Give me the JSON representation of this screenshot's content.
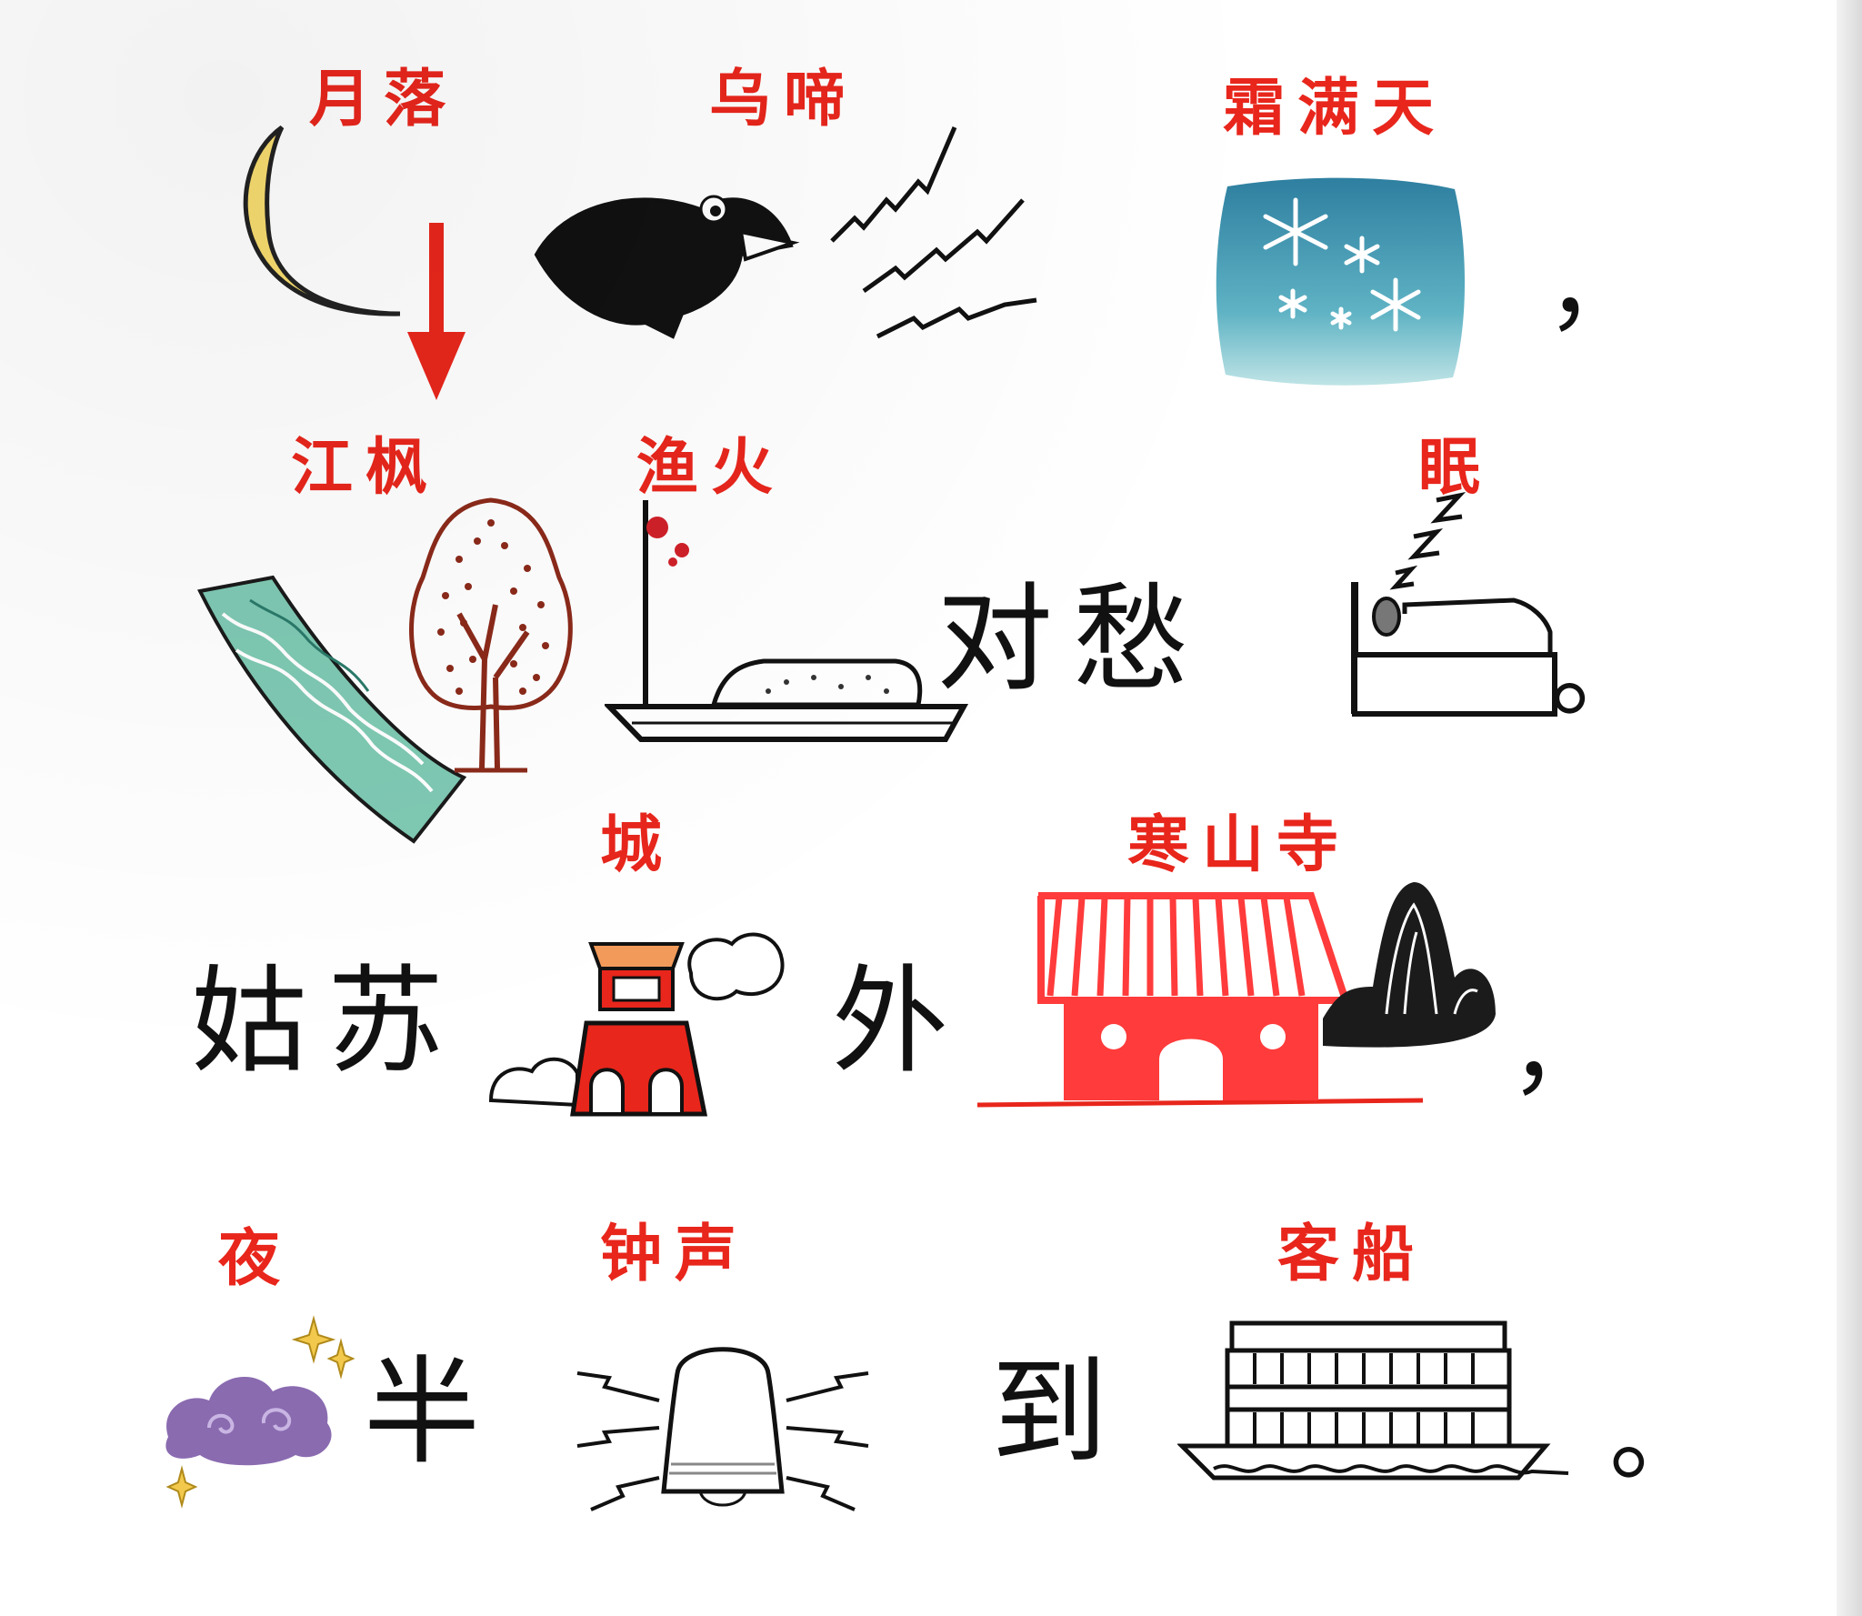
{
  "poem": {
    "line1": {
      "label_moon": "月落",
      "label_crow": "乌啼",
      "label_frost": "霜满天",
      "end_mark": "，"
    },
    "line2": {
      "label_river_maple": "江枫",
      "label_fishing_fire": "渔火",
      "text": "对愁",
      "label_sleep": "眠",
      "end_mark": "。"
    },
    "line3": {
      "text_gusu": "姑苏",
      "label_city": "城",
      "text_wai": "外",
      "label_temple": "寒山寺",
      "end_mark": "，"
    },
    "line4": {
      "label_night": "夜",
      "text_ban": "半",
      "label_bell": "钟声",
      "text_dao": "到",
      "label_boat": "客船",
      "end_mark": "。"
    }
  },
  "icons": [
    "moon-icon",
    "down-arrow-icon",
    "crow-icon",
    "sound-waves-icon",
    "snowflake-sky-icon",
    "river-icon",
    "maple-tree-icon",
    "fishing-boat-icon",
    "sleeping-bed-icon",
    "city-gate-icon",
    "cloud-icon",
    "temple-icon",
    "mountain-icon",
    "night-cloud-icon",
    "bell-icon",
    "passenger-boat-icon"
  ],
  "colors": {
    "label": "#e8261c",
    "text": "#111111",
    "moon": "#f7dc6f",
    "river": "#7fc9b3",
    "temple": "#ff3b3b"
  }
}
